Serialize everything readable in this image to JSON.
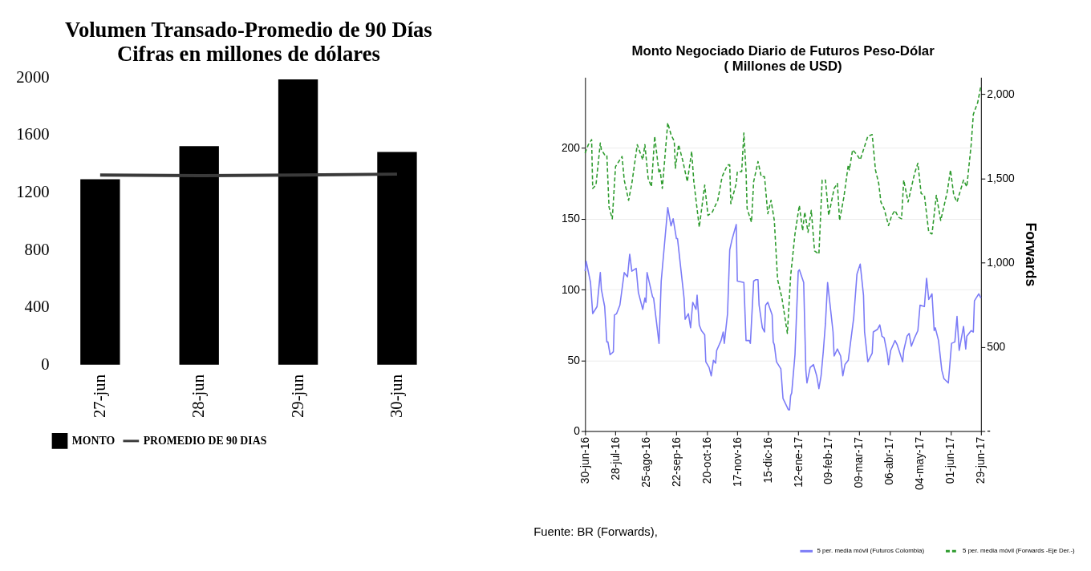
{
  "chart_data": [
    {
      "type": "bar",
      "title": "Volumen Transado-Promedio de 90 Días",
      "subtitle": "Cifras en millones de dólares",
      "categories": [
        "27-jun",
        "28-jun",
        "29-jun",
        "30-jun"
      ],
      "series": [
        {
          "name": "MONTO",
          "type": "bar",
          "color": "#000000",
          "values": [
            1290,
            1520,
            1985,
            1480
          ]
        },
        {
          "name": "PROMEDIO DE 90 DIAS",
          "type": "line",
          "color": "#3a3a3a",
          "values": [
            1320,
            1315,
            1320,
            1326
          ]
        }
      ],
      "ylim": [
        0,
        2000
      ],
      "yticks": [
        0,
        400,
        800,
        1200,
        1600,
        2000
      ],
      "grid": false,
      "legend": "bottom",
      "marker": "none"
    },
    {
      "type": "line",
      "title": "Monto Negociado Diario de Futuros Peso-Dólar",
      "subtitle": "( Millones de USD)",
      "y2label": "Forwards",
      "series": [
        {
          "name": "5 per. media móvil (Futuros Colombia)",
          "color": "#7b7bf7",
          "axis": "y",
          "line_style": "solid",
          "x": [
            "2016-06-30",
            "2016-07-01",
            "2016-07-05",
            "2016-07-07",
            "2016-07-11",
            "2016-07-14",
            "2016-07-15",
            "2016-07-18",
            "2016-07-20",
            "2016-07-21",
            "2016-07-23",
            "2016-07-26",
            "2016-07-27",
            "2016-07-29",
            "2016-08-01",
            "2016-08-05",
            "2016-08-08",
            "2016-08-10",
            "2016-08-12",
            "2016-08-16",
            "2016-08-18",
            "2016-08-22",
            "2016-08-24",
            "2016-08-25",
            "2016-08-26",
            "2016-08-31",
            "2016-09-01",
            "2016-09-06",
            "2016-09-08",
            "2016-09-14",
            "2016-09-17",
            "2016-09-19",
            "2016-09-22",
            "2016-09-23",
            "2016-09-29",
            "2016-09-30",
            "2016-10-03",
            "2016-10-05",
            "2016-10-07",
            "2016-10-10",
            "2016-10-11",
            "2016-10-13",
            "2016-10-15",
            "2016-10-18",
            "2016-10-19",
            "2016-10-22",
            "2016-10-24",
            "2016-10-26",
            "2016-10-28",
            "2016-10-29",
            "2016-11-02",
            "2016-11-04",
            "2016-11-05",
            "2016-11-08",
            "2016-11-10",
            "2016-11-12",
            "2016-11-16",
            "2016-11-17",
            "2016-11-23",
            "2016-11-25",
            "2016-11-28",
            "2016-11-29",
            "2016-12-02",
            "2016-12-04",
            "2016-12-06",
            "2016-12-07",
            "2016-12-10",
            "2016-12-12",
            "2016-12-13",
            "2016-12-15",
            "2016-12-19",
            "2016-12-20",
            "2016-12-21",
            "2016-12-23",
            "2016-12-27",
            "2016-12-29",
            "2017-01-03",
            "2017-01-04",
            "2017-01-05",
            "2017-01-06",
            "2017-01-09",
            "2017-01-12",
            "2017-01-13",
            "2017-01-17",
            "2017-01-19",
            "2017-01-20",
            "2017-01-23",
            "2017-01-26",
            "2017-01-29",
            "2017-01-31",
            "2017-02-02",
            "2017-02-04",
            "2017-02-06",
            "2017-02-08",
            "2017-02-10",
            "2017-02-13",
            "2017-02-14",
            "2017-02-17",
            "2017-02-20",
            "2017-02-22",
            "2017-02-24",
            "2017-02-27",
            "2017-03-01",
            "2017-03-04",
            "2017-03-07",
            "2017-03-10",
            "2017-03-13",
            "2017-03-14",
            "2017-03-17",
            "2017-03-21",
            "2017-03-22",
            "2017-03-26",
            "2017-03-28",
            "2017-03-30",
            "2017-04-01",
            "2017-04-04",
            "2017-04-05",
            "2017-04-07",
            "2017-04-11",
            "2017-04-13",
            "2017-04-18",
            "2017-04-19",
            "2017-04-22",
            "2017-04-24",
            "2017-04-26",
            "2017-04-29",
            "2017-05-02",
            "2017-05-04",
            "2017-05-08",
            "2017-05-10",
            "2017-05-12",
            "2017-05-15",
            "2017-05-17",
            "2017-05-18",
            "2017-05-21",
            "2017-05-24",
            "2017-05-26",
            "2017-05-30",
            "2017-06-02",
            "2017-06-05",
            "2017-06-07",
            "2017-06-09",
            "2017-06-13",
            "2017-06-15",
            "2017-06-16",
            "2017-06-20",
            "2017-06-22",
            "2017-06-23",
            "2017-06-27",
            "2017-06-29"
          ],
          "values": [
            113,
            120,
            105,
            83,
            88,
            112,
            100,
            88,
            63,
            63,
            54,
            56,
            82,
            83,
            89,
            112,
            109,
            125,
            113,
            115,
            98,
            86,
            94,
            91,
            112,
            95,
            94,
            62,
            106,
            158,
            145,
            150,
            136,
            136,
            94,
            79,
            83,
            73,
            91,
            86,
            96,
            75,
            71,
            68,
            49,
            45,
            39,
            50,
            48,
            57,
            64,
            70,
            62,
            83,
            128,
            135,
            146,
            106,
            105,
            64,
            64,
            62,
            106,
            107,
            107,
            89,
            73,
            70,
            89,
            91,
            82,
            63,
            61,
            49,
            44,
            23,
            15,
            15,
            25,
            27,
            54,
            113,
            114,
            105,
            43,
            34,
            45,
            47,
            39,
            30,
            39,
            56,
            76,
            105,
            91,
            70,
            53,
            58,
            53,
            39,
            47,
            50,
            62,
            80,
            111,
            118,
            96,
            70,
            49,
            55,
            70,
            72,
            75,
            67,
            66,
            54,
            47,
            57,
            64,
            61,
            49,
            57,
            67,
            69,
            60,
            66,
            71,
            89,
            88,
            108,
            93,
            97,
            71,
            73,
            64,
            43,
            37,
            34,
            62,
            63,
            81,
            57,
            74,
            58,
            67,
            71,
            70,
            92,
            97,
            94
          ]
        },
        {
          "name": "5 per. media móvil (Forwards -Eje Der.-)",
          "color": "#2e9b2e",
          "axis": "y2",
          "line_style": "dashed",
          "x": [
            "2016-06-30",
            "2016-07-03",
            "2016-07-06",
            "2016-07-07",
            "2016-07-10",
            "2016-07-14",
            "2016-07-15",
            "2016-07-18",
            "2016-07-20",
            "2016-07-22",
            "2016-07-25",
            "2016-07-28",
            "2016-08-03",
            "2016-08-05",
            "2016-08-09",
            "2016-08-12",
            "2016-08-17",
            "2016-08-22",
            "2016-08-24",
            "2016-08-27",
            "2016-08-30",
            "2016-09-02",
            "2016-09-06",
            "2016-09-07",
            "2016-09-09",
            "2016-09-14",
            "2016-09-17",
            "2016-09-20",
            "2016-09-21",
            "2016-09-24",
            "2016-09-28",
            "2016-10-02",
            "2016-10-06",
            "2016-10-08",
            "2016-10-13",
            "2016-10-18",
            "2016-10-21",
            "2016-10-25",
            "2016-10-30",
            "2016-11-03",
            "2016-11-08",
            "2016-11-10",
            "2016-11-11",
            "2016-11-16",
            "2016-11-17",
            "2016-11-21",
            "2016-11-23",
            "2016-11-25",
            "2016-11-26",
            "2016-11-30",
            "2016-12-02",
            "2016-12-06",
            "2016-12-09",
            "2016-12-12",
            "2016-12-15",
            "2016-12-18",
            "2016-12-21",
            "2016-12-24",
            "2016-12-28",
            "2017-01-02",
            "2017-01-05",
            "2017-01-09",
            "2017-01-13",
            "2017-01-16",
            "2017-01-18",
            "2017-01-21",
            "2017-01-24",
            "2017-01-27",
            "2017-01-31",
            "2017-02-03",
            "2017-02-06",
            "2017-02-09",
            "2017-02-14",
            "2017-02-17",
            "2017-02-19",
            "2017-02-23",
            "2017-02-27",
            "2017-02-28",
            "2017-03-03",
            "2017-03-07",
            "2017-03-10",
            "2017-03-17",
            "2017-03-21",
            "2017-03-24",
            "2017-03-27",
            "2017-03-29",
            "2017-04-01",
            "2017-04-05",
            "2017-04-08",
            "2017-04-11",
            "2017-04-14",
            "2017-04-17",
            "2017-04-19",
            "2017-04-23",
            "2017-04-29",
            "2017-05-02",
            "2017-05-05",
            "2017-05-08",
            "2017-05-12",
            "2017-05-15",
            "2017-05-19",
            "2017-05-23",
            "2017-05-29",
            "2017-06-01",
            "2017-06-04",
            "2017-06-07",
            "2017-06-13",
            "2017-06-16",
            "2017-06-20",
            "2017-06-22",
            "2017-06-26",
            "2017-06-29"
          ],
          "values": [
            1650,
            1700,
            1730,
            1440,
            1460,
            1710,
            1670,
            1640,
            1640,
            1330,
            1260,
            1570,
            1630,
            1490,
            1370,
            1470,
            1700,
            1610,
            1700,
            1500,
            1450,
            1750,
            1530,
            1550,
            1440,
            1830,
            1760,
            1720,
            1560,
            1700,
            1600,
            1480,
            1660,
            1480,
            1210,
            1460,
            1280,
            1300,
            1370,
            1510,
            1580,
            1580,
            1350,
            1470,
            1540,
            1540,
            1770,
            1540,
            1320,
            1240,
            1480,
            1600,
            1510,
            1510,
            1290,
            1370,
            1250,
            900,
            790,
            580,
            920,
            1170,
            1340,
            1190,
            1300,
            1180,
            1310,
            1070,
            1050,
            1490,
            1490,
            1280,
            1440,
            1470,
            1250,
            1390,
            1580,
            1550,
            1670,
            1640,
            1610,
            1750,
            1760,
            1550,
            1470,
            1360,
            1320,
            1220,
            1280,
            1310,
            1270,
            1260,
            1490,
            1360,
            1530,
            1590,
            1410,
            1400,
            1180,
            1170,
            1400,
            1250,
            1420,
            1550,
            1400,
            1360,
            1490,
            1450,
            1700,
            1880,
            1950,
            2050
          ]
        }
      ],
      "xlim": [
        "2016-06-30",
        "2017-06-29"
      ],
      "xticks": [
        {
          "value": "2016-06-30",
          "label": "30-jun-16"
        },
        {
          "value": "2016-07-28",
          "label": "28-jul-16"
        },
        {
          "value": "2016-08-25",
          "label": "25-ago-16"
        },
        {
          "value": "2016-09-22",
          "label": "22-sep-16"
        },
        {
          "value": "2016-10-20",
          "label": "20-oct-16"
        },
        {
          "value": "2016-11-17",
          "label": "17-nov-16"
        },
        {
          "value": "2016-12-15",
          "label": "15-dic-16"
        },
        {
          "value": "2017-01-12",
          "label": "12-ene-17"
        },
        {
          "value": "2017-02-09",
          "label": "09-feb-17"
        },
        {
          "value": "2017-03-09",
          "label": "09-mar-17"
        },
        {
          "value": "2017-04-06",
          "label": "06-abr-17"
        },
        {
          "value": "2017-05-04",
          "label": "04-may-17"
        },
        {
          "value": "2017-06-01",
          "label": "01-jun-17"
        },
        {
          "value": "2017-06-29",
          "label": "29-jun-17"
        }
      ],
      "ylim": [
        0,
        250
      ],
      "yticks": [
        0,
        50,
        100,
        150,
        200
      ],
      "y2lim": [
        0,
        2100
      ],
      "y2ticks": [
        {
          "value": 0,
          "label": "-"
        },
        500,
        {
          "value": 1000,
          "label": "1,000"
        },
        {
          "value": 1500,
          "label": "1,500"
        },
        {
          "value": 2000,
          "label": "2,000"
        }
      ],
      "grid": "y",
      "legend": "bottom right",
      "marker": "none",
      "annotations": [
        "Fuente: BR (Forwards),"
      ]
    }
  ]
}
